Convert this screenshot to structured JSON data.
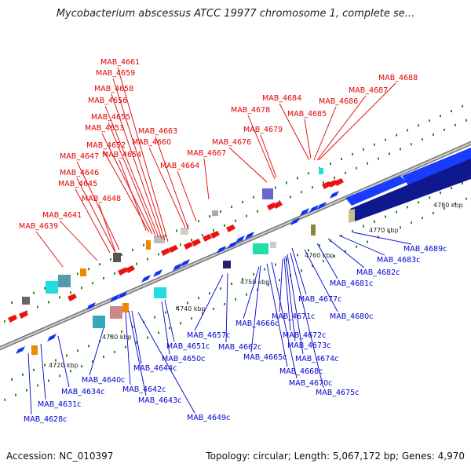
{
  "title": "Mycobacterium abscessus ATCC 19977 chromosome 1, complete se...",
  "footer": {
    "accession": "Accession: NC_010397",
    "topology": "Topology: circular; Length: 5,067,172 bp; Genes: 4,970"
  },
  "colors": {
    "forward_label": "#e00000",
    "reverse_label": "#0000d0",
    "forward_gene": "#ee1111",
    "reverse_gene": "#1133ee",
    "backbone": "#8a8a8a",
    "tick": "#2a8a2a",
    "cds_cyan": "#22dddd",
    "cds_orange": "#ee8800"
  },
  "ticks": [
    "4720 kbp",
    "4730 kbp",
    "4740 kbp",
    "4750 kbp",
    "4760 kbp",
    "4770 kbp",
    "4780 kbp"
  ],
  "forward_labels": [
    "MAB_4661",
    "MAB_4659",
    "MAB_4658",
    "MAB_4656",
    "MAB_4655",
    "MAB_4653",
    "MAB_4663",
    "MAB_4660",
    "MAB_4652",
    "MAB_4654",
    "MAB_4647",
    "MAB_4664",
    "MAB_4646",
    "MAB_4645",
    "MAB_4648",
    "MAB_4641",
    "MAB_4639",
    "MAB_4667",
    "MAB_4676",
    "MAB_4678",
    "MAB_4679",
    "MAB_4684",
    "MAB_4685",
    "MAB_4686",
    "MAB_4687",
    "MAB_4688"
  ],
  "reverse_labels": [
    "MAB_4689c",
    "MAB_4683c",
    "MAB_4682c",
    "MAB_4681c",
    "MAB_4677c",
    "MAB_4680c",
    "MAB_4671c",
    "MAB_4672c",
    "MAB_4673c",
    "MAB_4674c",
    "MAB_4675c",
    "MAB_4666c",
    "MAB_4665c",
    "MAB_4668c",
    "MAB_4670c",
    "MAB_4657c",
    "MAB_4662c",
    "MAB_4651c",
    "MAB_4650c",
    "MAB_4644c",
    "MAB_4642c",
    "MAB_4643c",
    "MAB_4649c",
    "MAB_4640c",
    "MAB_4634c",
    "MAB_4631c",
    "MAB_4628c"
  ]
}
